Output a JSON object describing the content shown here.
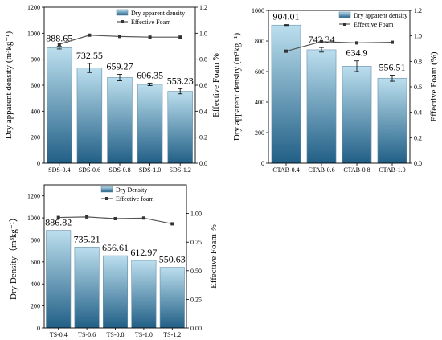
{
  "chart_data": [
    {
      "type": "bar",
      "categories": [
        "SDS-0.4",
        "SDS-0.6",
        "SDS-0.8",
        "SDS-1.0",
        "SDS-1.2"
      ],
      "series": [
        {
          "name": "Dry apparent density",
          "values": [
            888.65,
            732.55,
            659.27,
            606.35,
            553.23
          ],
          "errors": [
            10,
            35,
            25,
            10,
            20
          ]
        },
        {
          "name": "Effective Foam",
          "type": "line",
          "axis": "right",
          "values": [
            0.915,
            0.985,
            0.975,
            0.97,
            0.97
          ]
        }
      ],
      "value_labels": [
        "888.65",
        "732.55",
        "659.27",
        "606.35",
        "553.23"
      ],
      "ylabel": "Dry apparent density (m³kg⁻¹)",
      "y2label": "Effective Foam %",
      "ylim": [
        0,
        1200
      ],
      "y2lim": [
        0,
        1.2
      ],
      "yticks": [
        0,
        200,
        400,
        600,
        800,
        1000,
        1200
      ],
      "y2ticks": [
        "0.0",
        "0.2",
        "0.4",
        "0.6",
        "0.8",
        "1.0",
        "1.2"
      ],
      "legend": "top-right"
    },
    {
      "type": "bar",
      "categories": [
        "CTAB-0.4",
        "CTAB-0.6",
        "CTAB-0.8",
        "CTAB-1.0"
      ],
      "series": [
        {
          "name": "Dry apparent density",
          "values": [
            904.01,
            742.34,
            634.9,
            556.51
          ],
          "errors": [
            3,
            15,
            35,
            20
          ]
        },
        {
          "name": "Effective Foam",
          "type": "line",
          "axis": "right",
          "values": [
            0.88,
            0.955,
            0.945,
            0.95
          ]
        }
      ],
      "value_labels": [
        "904.01",
        "742.34",
        "634.9",
        "556.51"
      ],
      "ylabel": "Dry apparent density (m³kg⁻¹)",
      "y2label": "Effective Foam (%)",
      "ylim": [
        0,
        1000
      ],
      "y2lim": [
        0,
        1.2
      ],
      "yticks": [
        0,
        200,
        400,
        600,
        800,
        1000
      ],
      "y2ticks": [
        "0.0",
        "0.2",
        "0.4",
        "0.6",
        "0.8",
        "1.0",
        "1.2"
      ],
      "legend": "top-right"
    },
    {
      "type": "bar",
      "categories": [
        "TS-0.4",
        "TS-0.6",
        "TS-0.8",
        "TS-1.0",
        "TS-1.2"
      ],
      "series": [
        {
          "name": "Dry Density",
          "values": [
            886.82,
            735.21,
            656.61,
            612.97,
            550.63
          ],
          "errors": [
            0,
            0,
            0,
            0,
            0
          ]
        },
        {
          "name": "Effective foam",
          "type": "line",
          "axis": "right",
          "values": [
            0.965,
            0.97,
            0.955,
            0.96,
            0.91
          ]
        }
      ],
      "value_labels": [
        "886.82",
        "735.21",
        "656.61",
        "612.97",
        "550.63"
      ],
      "ylabel": "Dry Density（m³kg⁻¹）",
      "y2label": "Effective Foam %",
      "ylim": [
        0,
        1300
      ],
      "y2lim": [
        0,
        1.25
      ],
      "yticks": [
        0,
        200,
        400,
        600,
        800,
        1000,
        1200
      ],
      "y2ticks": [
        "0.00",
        "0.25",
        "0.50",
        "0.75",
        "1.00"
      ],
      "legend": "top-right"
    }
  ],
  "colors": {
    "bar_top": "#bcdfee",
    "bar_bottom": "#215f86",
    "line": "#555555",
    "axis": "#000000"
  }
}
